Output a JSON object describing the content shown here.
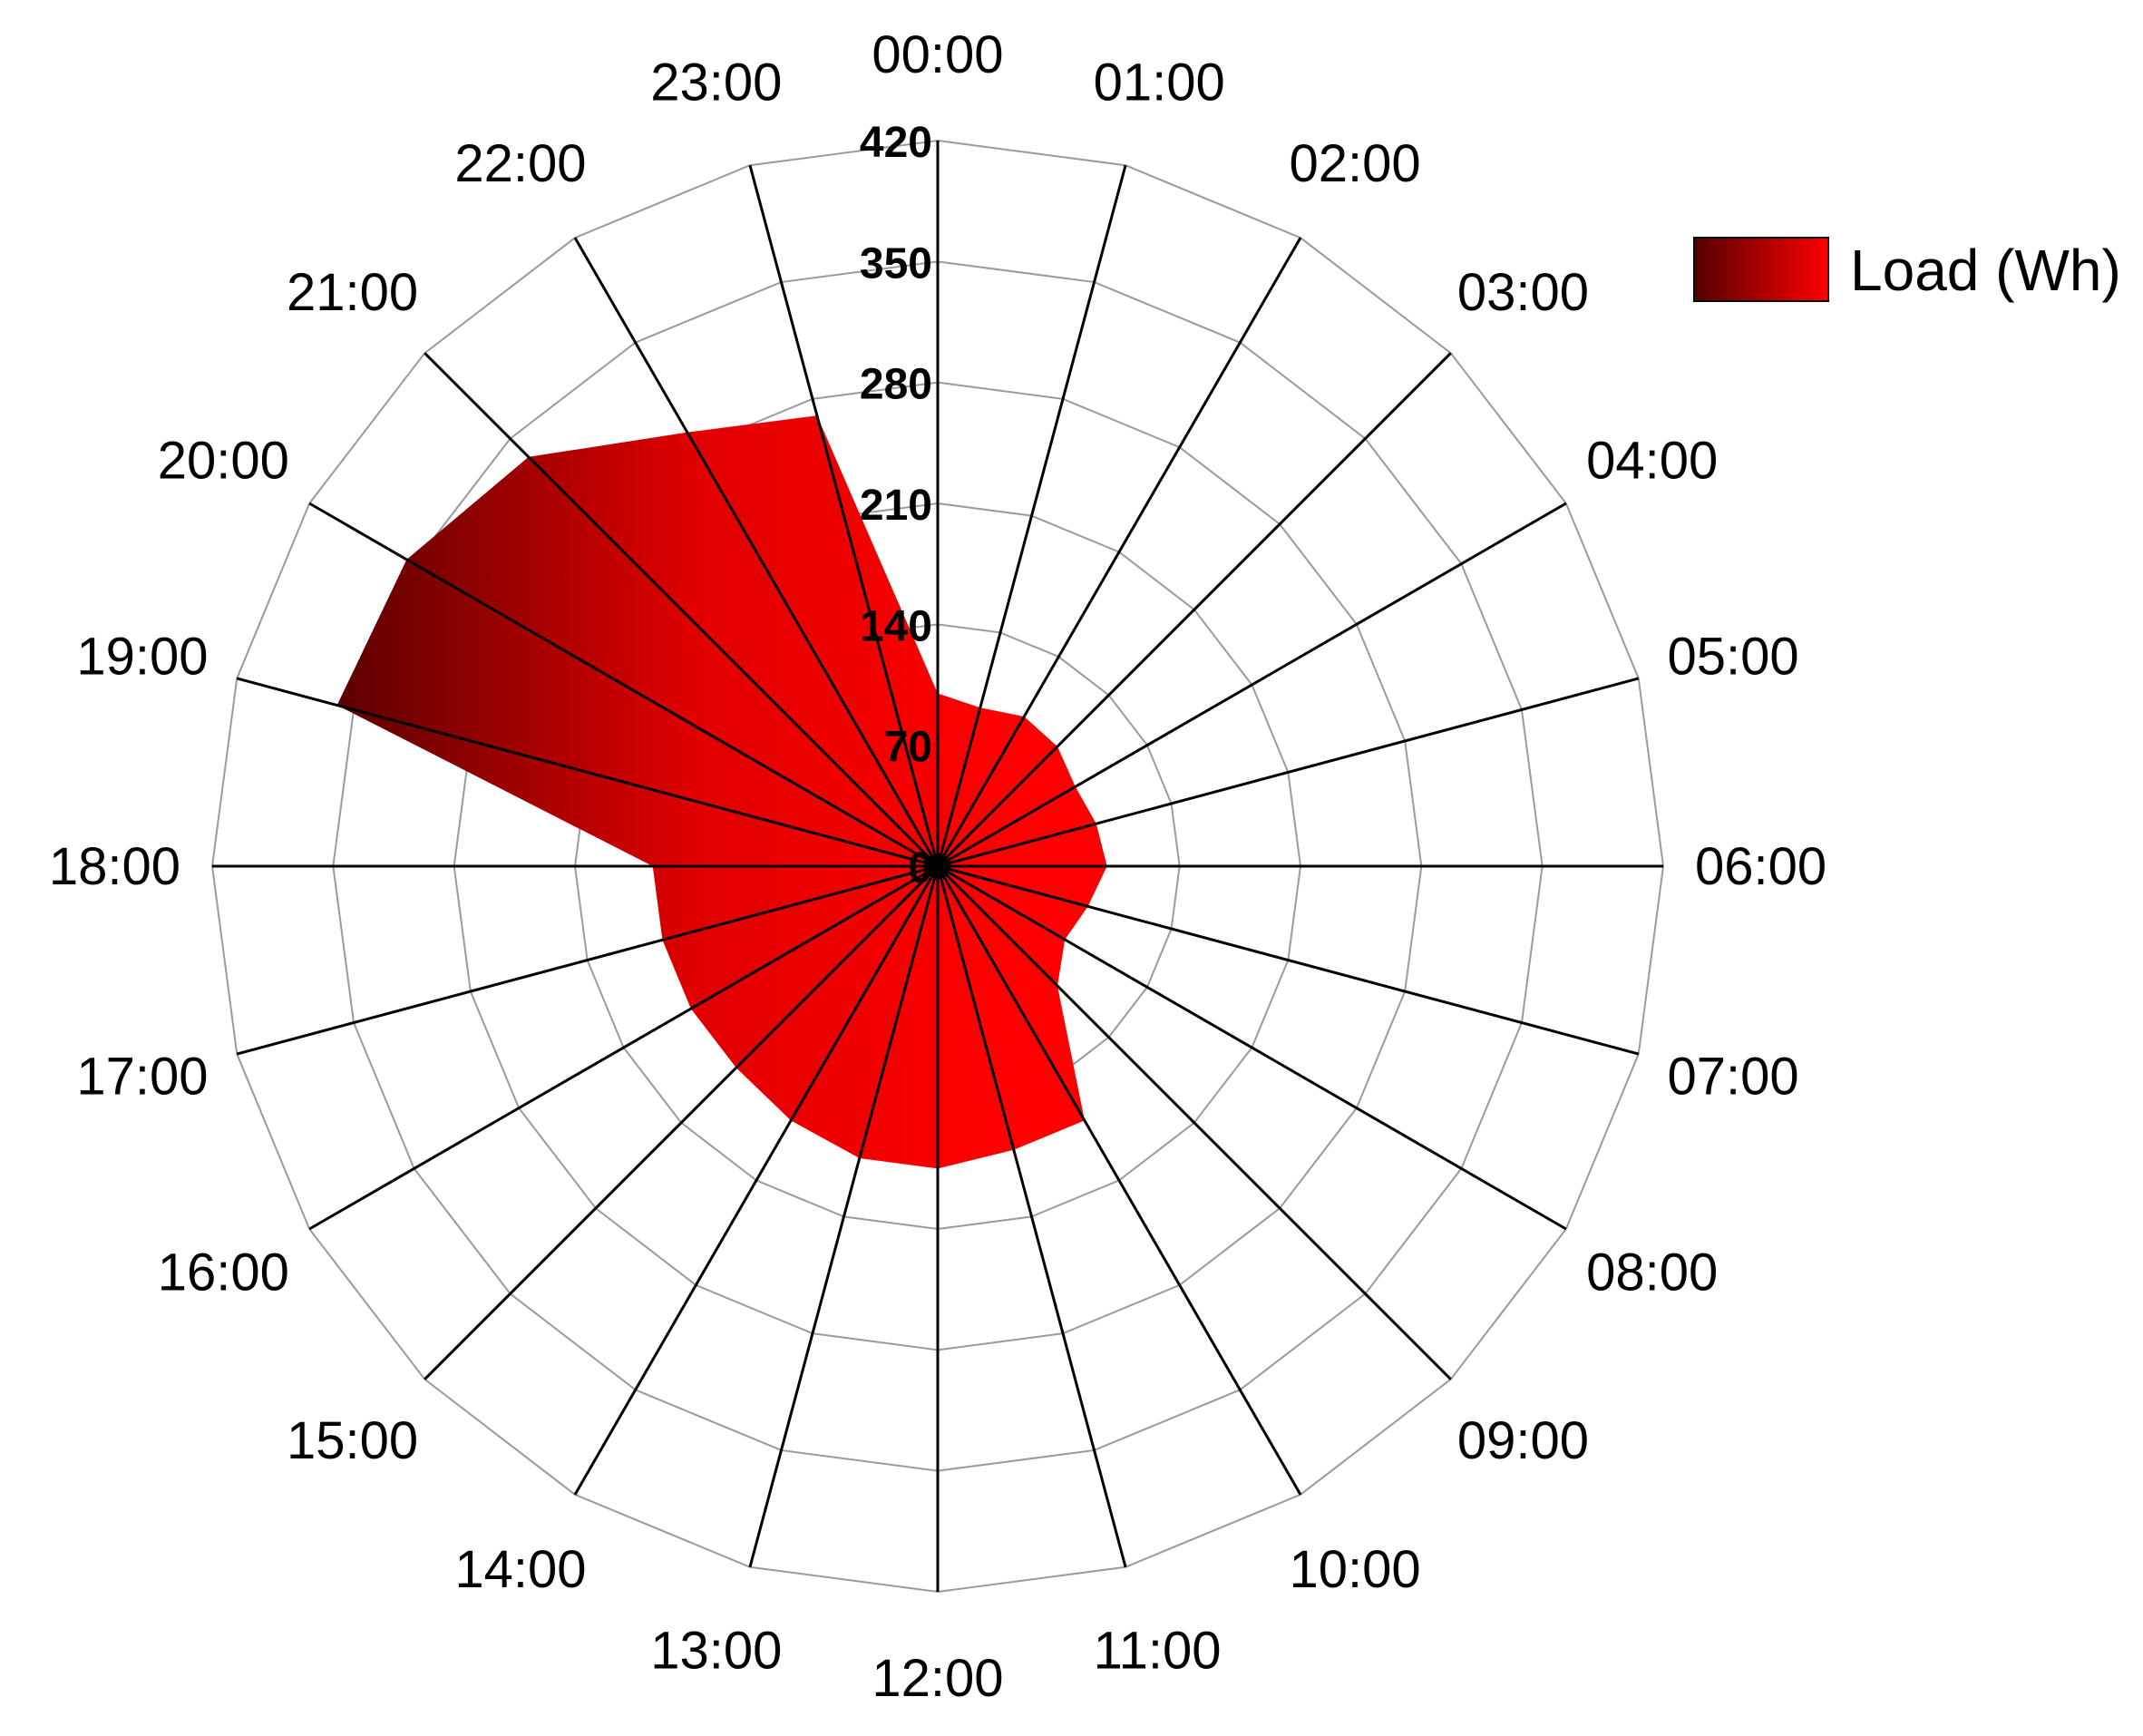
{
  "chart_data": {
    "type": "radar",
    "title": "",
    "categories": [
      "00:00",
      "01:00",
      "02:00",
      "03:00",
      "04:00",
      "05:00",
      "06:00",
      "07:00",
      "08:00",
      "09:00",
      "10:00",
      "11:00",
      "12:00",
      "13:00",
      "14:00",
      "15:00",
      "16:00",
      "17:00",
      "18:00",
      "19:00",
      "20:00",
      "21:00",
      "22:00",
      "23:00"
    ],
    "series": [
      {
        "name": "Load (Wh)",
        "values": [
          100,
          95,
          100,
          98,
          92,
          95,
          98,
          90,
          85,
          98,
          170,
          170,
          175,
          175,
          170,
          165,
          165,
          165,
          165,
          360,
          355,
          335,
          290,
          270
        ],
        "color_light": "#ff0000",
        "color_dark": "#550000"
      }
    ],
    "radial_ticks": [
      "0",
      "70",
      "140",
      "210",
      "280",
      "350",
      "420"
    ],
    "radial_range": [
      0,
      420
    ],
    "grid": true,
    "legend": {
      "position": "top-right",
      "label": "Load (Wh)"
    }
  }
}
